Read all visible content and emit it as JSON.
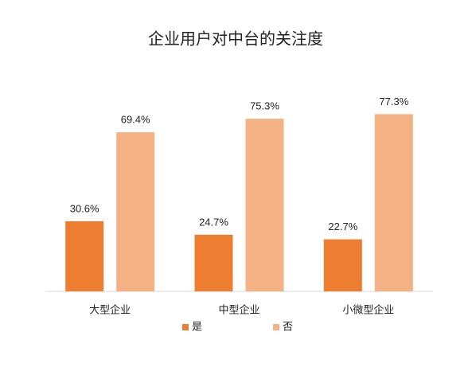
{
  "chart_data": {
    "type": "bar",
    "title": "企业用户对中台的关注度",
    "categories": [
      "大型企业",
      "中型企业",
      "小微型企业"
    ],
    "series": [
      {
        "name": "是",
        "color": "#ED7D31",
        "values": [
          30.6,
          24.7,
          22.7
        ],
        "value_labels": [
          "30.6%",
          "24.7%",
          "22.7%"
        ]
      },
      {
        "name": "否",
        "color": "#F4B183",
        "values": [
          69.4,
          75.3,
          77.3
        ],
        "value_labels": [
          "69.4%",
          "75.3%",
          "77.3%"
        ]
      }
    ],
    "ylim": [
      0,
      100
    ],
    "legend": "bottom"
  }
}
